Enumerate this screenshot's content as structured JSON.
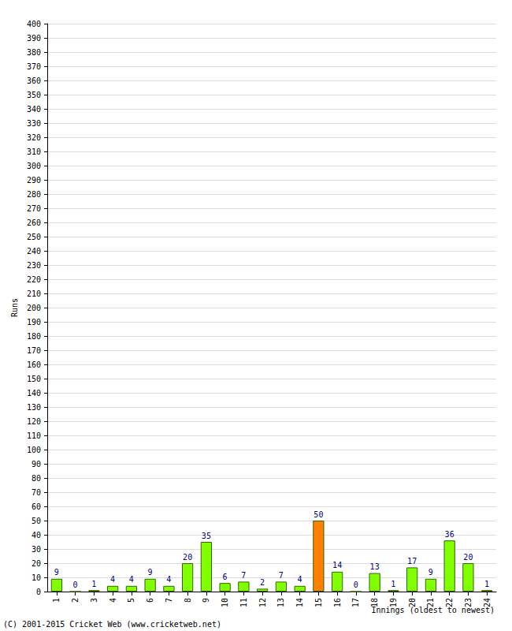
{
  "chart_data": {
    "type": "bar",
    "x_label": "Innings (oldest to newest)",
    "y_label": "Runs",
    "annotations": [
      "(C) 2001-2015 Cricket Web (www.cricketweb.net)"
    ],
    "categories": [
      "1",
      "2",
      "3",
      "4",
      "5",
      "6",
      "7",
      "8",
      "9",
      "10",
      "11",
      "12",
      "13",
      "14",
      "15",
      "16",
      "17",
      "18",
      "19",
      "20",
      "21",
      "22",
      "23",
      "24"
    ],
    "values": [
      9,
      0,
      1,
      4,
      4,
      9,
      4,
      20,
      35,
      6,
      7,
      2,
      7,
      4,
      50,
      14,
      0,
      13,
      1,
      17,
      9,
      36,
      20,
      1
    ],
    "colors": [
      "#80ff00",
      "#80ff00",
      "#80ff00",
      "#80ff00",
      "#80ff00",
      "#80ff00",
      "#80ff00",
      "#80ff00",
      "#80ff00",
      "#80ff00",
      "#80ff00",
      "#80ff00",
      "#80ff00",
      "#80ff00",
      "#ff8000",
      "#80ff00",
      "#80ff00",
      "#80ff00",
      "#80ff00",
      "#80ff00",
      "#80ff00",
      "#80ff00",
      "#80ff00",
      "#80ff00"
    ],
    "ylim": [
      0,
      400
    ],
    "yticks": [
      0,
      10,
      20,
      30,
      40,
      50,
      60,
      70,
      80,
      90,
      100,
      110,
      120,
      130,
      140,
      150,
      160,
      170,
      180,
      190,
      200,
      210,
      220,
      230,
      240,
      250,
      260,
      270,
      280,
      290,
      300,
      310,
      320,
      330,
      340,
      350,
      360,
      370,
      380,
      390,
      400
    ],
    "grid": true,
    "data_labels": true
  }
}
